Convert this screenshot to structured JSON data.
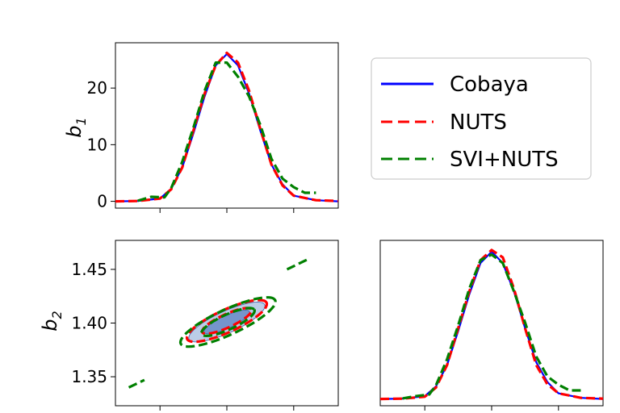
{
  "chart_data": [
    {
      "panel": "top-left",
      "type": "line",
      "title": "",
      "xlabel": "",
      "ylabel": "b",
      "ylabel_sub": "1",
      "xlim": [
        0,
        10
      ],
      "ylim": [
        -1.2,
        28
      ],
      "xticks": [
        2,
        5,
        8
      ],
      "yticks": [
        0,
        10,
        20
      ],
      "ytick_labels": [
        "0",
        "10",
        "20"
      ],
      "series": [
        {
          "name": "Cobaya",
          "color": "#0000ff",
          "style": "solid",
          "x": [
            0,
            1,
            2,
            2.5,
            3,
            3.5,
            4,
            4.5,
            5,
            5.5,
            6,
            6.5,
            7,
            7.5,
            8,
            9,
            10
          ],
          "y": [
            0,
            0.05,
            0.5,
            2.2,
            6,
            12,
            18.5,
            24,
            26,
            24,
            19,
            12.5,
            6.5,
            3,
            1,
            0.2,
            0
          ]
        },
        {
          "name": "NUTS",
          "color": "#ff0000",
          "style": "dashed",
          "x": [
            0,
            1,
            2,
            2.5,
            3,
            3.5,
            4,
            4.5,
            5,
            5.5,
            6,
            6.5,
            7,
            7.5,
            8,
            9,
            10
          ],
          "y": [
            0,
            0.05,
            0.5,
            2.1,
            6,
            12.5,
            19,
            24,
            26.2,
            24.5,
            19.5,
            12.8,
            6.5,
            2.8,
            1,
            0.2,
            0.05
          ]
        },
        {
          "name": "SVI+NUTS",
          "color": "#008000",
          "style": "dashed",
          "x": [
            1,
            1.6,
            2.2,
            2.5,
            3,
            3.5,
            4,
            4.5,
            5,
            5.5,
            6,
            6.5,
            7,
            7.5,
            8,
            8.5,
            9
          ],
          "y": [
            0.1,
            0.8,
            0.7,
            2.3,
            7,
            13,
            19.5,
            24.5,
            24.5,
            22,
            18.5,
            13.5,
            7.5,
            4,
            2.5,
            1.5,
            1.5
          ]
        }
      ]
    },
    {
      "panel": "bottom-left",
      "type": "contour",
      "xlabel": "",
      "ylabel": "b",
      "ylabel_sub": "2",
      "xlim": [
        0,
        10
      ],
      "ylim": [
        1.323,
        1.477
      ],
      "xticks": [
        2,
        5,
        8
      ],
      "yticks": [
        1.35,
        1.4,
        1.45
      ],
      "ytick_labels": [
        "1.35",
        "1.40",
        "1.45"
      ],
      "series": [
        {
          "name": "Cobaya",
          "color": "#0000ff",
          "style": "filled",
          "contours": [
            {
              "level": "68%",
              "center": [
                5,
                1.401
              ],
              "half_axes": [
                1.2,
                0.0055
              ],
              "angle_deg": 33
            },
            {
              "level": "95%",
              "center": [
                5,
                1.401
              ],
              "half_axes": [
                2.0,
                0.0095
              ],
              "angle_deg": 33
            }
          ]
        },
        {
          "name": "NUTS",
          "color": "#ff0000",
          "style": "dashed",
          "contours": [
            {
              "level": "68%",
              "center": [
                5,
                1.402
              ],
              "half_axes": [
                1.3,
                0.0058
              ],
              "angle_deg": 33
            },
            {
              "level": "95%",
              "center": [
                5,
                1.402
              ],
              "half_axes": [
                2.1,
                0.0098
              ],
              "angle_deg": 33
            }
          ]
        },
        {
          "name": "SVI+NUTS",
          "color": "#008000",
          "style": "dashed",
          "contours": [
            {
              "level": "68%",
              "center": [
                5.05,
                1.401
              ],
              "half_axes": [
                1.4,
                0.0065
              ],
              "angle_deg": 33
            },
            {
              "level": "95%",
              "center": [
                5.05,
                1.401
              ],
              "half_axes": [
                2.5,
                0.011
              ],
              "angle_deg": 33
            }
          ]
        }
      ]
    },
    {
      "panel": "bottom-right",
      "type": "line",
      "xlabel": "",
      "ylabel": "",
      "xlim": [
        0,
        10
      ],
      "ylim": [
        -1.2,
        28
      ],
      "xticks": [
        2,
        5,
        8
      ],
      "yticks": [],
      "series": [
        {
          "name": "Cobaya",
          "color": "#0000ff",
          "style": "solid",
          "x": [
            0,
            1,
            2,
            2.5,
            3,
            3.5,
            4,
            4.5,
            5,
            5.5,
            6,
            6.5,
            7,
            7.5,
            8,
            9,
            10
          ],
          "y": [
            0,
            0.05,
            0.5,
            2.2,
            6,
            12,
            18.5,
            24,
            26,
            24,
            19,
            12.5,
            6.5,
            3,
            1,
            0.2,
            0
          ]
        },
        {
          "name": "NUTS",
          "color": "#ff0000",
          "style": "dashed",
          "x": [
            0,
            1,
            2,
            2.5,
            3,
            3.5,
            4,
            4.5,
            5,
            5.5,
            6,
            6.5,
            7,
            7.5,
            8,
            9,
            10
          ],
          "y": [
            0,
            0.05,
            0.4,
            2.0,
            6,
            12.5,
            19,
            24.5,
            26.3,
            25,
            19.5,
            12.5,
            6,
            2.6,
            1,
            0.2,
            0.05
          ]
        },
        {
          "name": "SVI+NUTS",
          "color": "#008000",
          "style": "dashed",
          "x": [
            1,
            1.6,
            2.2,
            2.5,
            3,
            3.5,
            4,
            4.5,
            5,
            5.5,
            6,
            6.5,
            7,
            7.5,
            8,
            8.5,
            9
          ],
          "y": [
            0.1,
            0.5,
            0.8,
            2.4,
            7,
            13,
            19.5,
            24.5,
            25.5,
            24,
            19,
            13.5,
            7.5,
            4,
            2.5,
            1.5,
            1.5
          ]
        }
      ]
    }
  ],
  "legend": {
    "placement": "top-right",
    "entries": [
      {
        "label": "Cobaya",
        "color": "#0000ff",
        "style": "solid"
      },
      {
        "label": "NUTS",
        "color": "#ff0000",
        "style": "dashed"
      },
      {
        "label": "SVI+NUTS",
        "color": "#008000",
        "style": "dashed"
      }
    ]
  },
  "colors": {
    "fill_outer": "#b4c8e4",
    "fill_inner": "#6e8fc8"
  }
}
